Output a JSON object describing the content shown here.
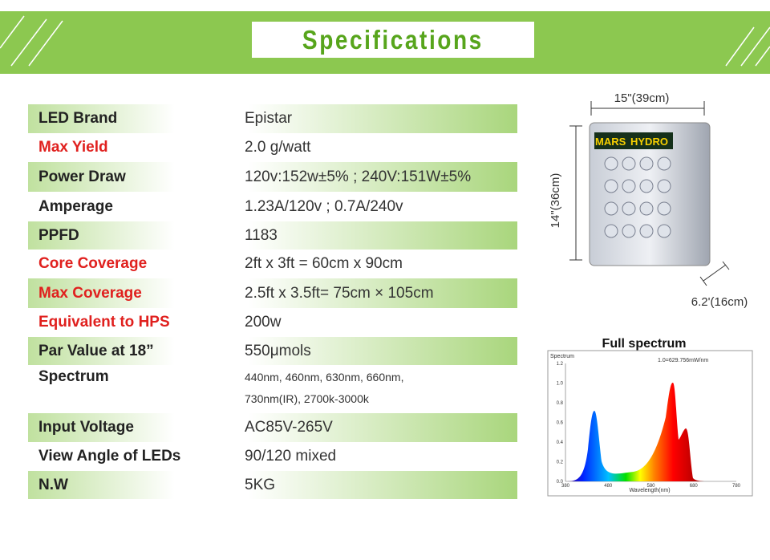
{
  "header": {
    "title": "Specifications"
  },
  "table": {
    "rows": [
      {
        "label": "LED Brand",
        "label_color": "#222222",
        "value": [
          "Epistar"
        ]
      },
      {
        "label": "Max Yield",
        "label_color": "#e0201e",
        "value": [
          "2.0 g/watt"
        ]
      },
      {
        "label": "Power  Draw",
        "label_color": "#222222",
        "value": [
          "120v:152w±5% ; 240V:151W±5%"
        ]
      },
      {
        "label": "Amperage",
        "label_color": "#222222",
        "value": [
          "1.23A/120v ; 0.7A/240v"
        ]
      },
      {
        "label": "PPFD",
        "label_color": "#222222",
        "value": [
          "1183"
        ]
      },
      {
        "label": "Core Coverage",
        "label_color": "#e0201e",
        "value": [
          "2ft x 3ft = 60cm x 90cm"
        ]
      },
      {
        "label": "Max Coverage",
        "label_color": "#e0201e",
        "value": [
          "2.5ft x 3.5ft= 75cm × 105cm"
        ]
      },
      {
        "label": "Equivalent to HPS",
        "label_color": "#e0201e",
        "value": [
          "200w"
        ]
      },
      {
        "label": "Par Value at 18”",
        "label_color": "#222222",
        "value": [
          "550μmols"
        ]
      },
      {
        "label": "Spectrum",
        "label_color": "#222222",
        "value": [
          "440nm, 460nm, 630nm, 660nm,",
          "730nm(IR), 2700k-3000k"
        ]
      },
      {
        "label": "Input Voltage",
        "label_color": "#222222",
        "value": [
          "AC85V-265V"
        ]
      },
      {
        "label": "View Angle of LEDs",
        "label_color": "#222222",
        "value": [
          "90/120 mixed"
        ]
      },
      {
        "label": "N.W",
        "label_color": "#222222",
        "value": [
          "5KG"
        ]
      }
    ]
  },
  "product": {
    "width_label": "15\"(39cm)",
    "height_label": "14\"(36cm)",
    "depth_label": "6.2'(16cm)",
    "brand_left": "MARS",
    "brand_right": "HYDRO"
  },
  "spectrum_chart": {
    "title": "Full spectrum",
    "axis_title": "Spectrum",
    "note": "1.0=629.756mW/nm",
    "x_label": "Wavelength(nm)",
    "yticks": [
      "1.2",
      "1.0",
      "0.8",
      "0.6",
      "0.4",
      "0.2",
      "0.0"
    ],
    "xticks": [
      "380",
      "480",
      "580",
      "680",
      "780"
    ]
  }
}
